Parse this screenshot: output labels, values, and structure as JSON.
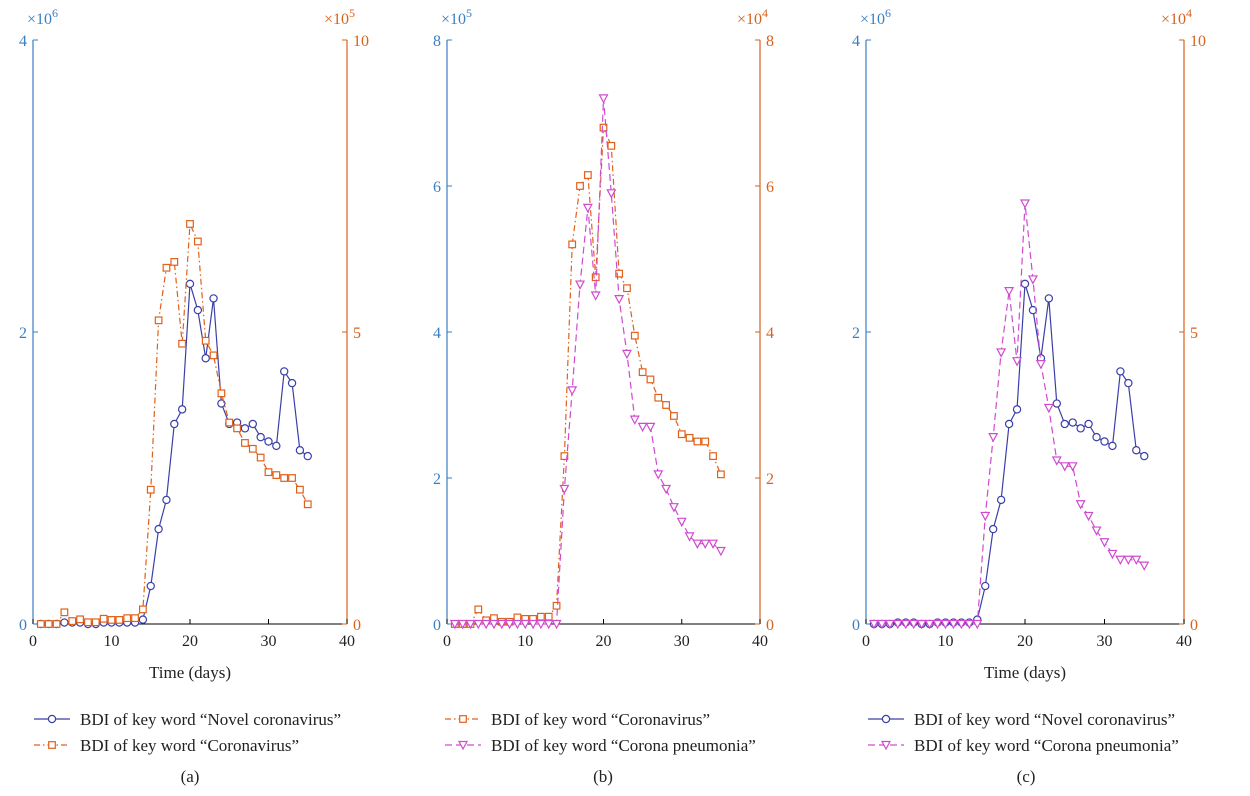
{
  "colors": {
    "left_axis": "#3a7fc1",
    "right_axis": "#d9611d",
    "novel": "#3a3fa8",
    "coronavirus": "#e0601a",
    "pneumonia": "#d04ad0"
  },
  "chart_data": [
    {
      "panel_label": "(a)",
      "type": "line",
      "xlabel": "Time (days)",
      "xlim": [
        0,
        40
      ],
      "xticks": [
        "0",
        "10",
        "20",
        "30",
        "40"
      ],
      "left_axis": {
        "multiplier": "×10",
        "exponent": "6",
        "ylim": [
          0,
          4
        ],
        "ticks": [
          "0",
          "2",
          "4"
        ]
      },
      "right_axis": {
        "multiplier": "×10",
        "exponent": "5",
        "ylim": [
          0,
          10
        ],
        "ticks": [
          "0",
          "5",
          "10"
        ]
      },
      "series": [
        {
          "name": "BDI of key word “Novel coronavirus”",
          "color_key": "novel",
          "axis": "left",
          "marker": "circle",
          "dash": "solid",
          "x": [
            1,
            2,
            3,
            4,
            5,
            6,
            7,
            8,
            9,
            10,
            11,
            12,
            13,
            14,
            15,
            16,
            17,
            18,
            19,
            20,
            21,
            22,
            23,
            24,
            25,
            26,
            27,
            28,
            29,
            30,
            31,
            32,
            33,
            34,
            35
          ],
          "y": [
            0.0,
            0.0,
            0.0,
            0.01,
            0.01,
            0.01,
            0.0,
            0.0,
            0.01,
            0.01,
            0.01,
            0.01,
            0.01,
            0.03,
            0.26,
            0.65,
            0.85,
            1.37,
            1.47,
            2.33,
            2.15,
            1.82,
            2.23,
            1.51,
            1.37,
            1.38,
            1.34,
            1.37,
            1.28,
            1.25,
            1.22,
            1.73,
            1.65,
            1.19,
            1.15
          ]
        },
        {
          "name": "BDI of key word “Coronavirus”",
          "color_key": "coronavirus",
          "axis": "right",
          "marker": "square",
          "dash": "dashdot",
          "x": [
            1,
            2,
            3,
            4,
            5,
            6,
            7,
            8,
            9,
            10,
            11,
            12,
            13,
            14,
            15,
            16,
            17,
            18,
            19,
            20,
            21,
            22,
            23,
            24,
            25,
            26,
            27,
            28,
            29,
            30,
            31,
            32,
            33,
            34,
            35
          ],
          "y": [
            0.0,
            0.0,
            0.0,
            0.2,
            0.05,
            0.08,
            0.03,
            0.03,
            0.09,
            0.07,
            0.07,
            0.1,
            0.1,
            0.25,
            2.3,
            5.2,
            6.1,
            6.2,
            4.8,
            6.85,
            6.55,
            4.85,
            4.6,
            3.95,
            3.45,
            3.35,
            3.1,
            3.0,
            2.85,
            2.6,
            2.55,
            2.5,
            2.5,
            2.3,
            2.05
          ]
        }
      ],
      "legend_order": [
        0,
        1
      ]
    },
    {
      "panel_label": "(b)",
      "type": "line",
      "xlabel": "",
      "xlim": [
        0,
        40
      ],
      "xticks": [
        "0",
        "10",
        "20",
        "30",
        "40"
      ],
      "left_axis": {
        "multiplier": "×10",
        "exponent": "5",
        "ylim": [
          0,
          8
        ],
        "ticks": [
          "0",
          "2",
          "4",
          "6",
          "8"
        ]
      },
      "right_axis": {
        "multiplier": "×10",
        "exponent": "4",
        "ylim": [
          0,
          8
        ],
        "ticks": [
          "0",
          "2",
          "4",
          "6",
          "8"
        ]
      },
      "series": [
        {
          "name": "BDI of key word “Coronavirus”",
          "color_key": "coronavirus",
          "axis": "left",
          "marker": "square",
          "dash": "dashdot",
          "x": [
            1,
            2,
            3,
            4,
            5,
            6,
            7,
            8,
            9,
            10,
            11,
            12,
            13,
            14,
            15,
            16,
            17,
            18,
            19,
            20,
            21,
            22,
            23,
            24,
            25,
            26,
            27,
            28,
            29,
            30,
            31,
            32,
            33,
            34,
            35
          ],
          "y": [
            0.0,
            0.0,
            0.0,
            0.2,
            0.05,
            0.08,
            0.03,
            0.03,
            0.09,
            0.07,
            0.07,
            0.1,
            0.1,
            0.25,
            2.3,
            5.2,
            6.0,
            6.15,
            4.75,
            6.8,
            6.55,
            4.8,
            4.6,
            3.95,
            3.45,
            3.35,
            3.1,
            3.0,
            2.85,
            2.6,
            2.55,
            2.5,
            2.5,
            2.3,
            2.05
          ]
        },
        {
          "name": "BDI of key word “Corona pneumonia”",
          "color_key": "pneumonia",
          "axis": "right",
          "marker": "triangle-down",
          "dash": "dashed",
          "x": [
            1,
            2,
            3,
            4,
            5,
            6,
            7,
            8,
            9,
            10,
            11,
            12,
            13,
            14,
            15,
            16,
            17,
            18,
            19,
            20,
            21,
            22,
            23,
            24,
            25,
            26,
            27,
            28,
            29,
            30,
            31,
            32,
            33,
            34,
            35
          ],
          "y": [
            0.0,
            0.0,
            0.0,
            0.0,
            0.0,
            0.0,
            0.0,
            0.0,
            0.0,
            0.0,
            0.0,
            0.0,
            0.0,
            0.0,
            1.85,
            3.2,
            4.65,
            5.7,
            4.5,
            7.2,
            5.9,
            4.45,
            3.7,
            2.8,
            2.7,
            2.7,
            2.05,
            1.85,
            1.6,
            1.4,
            1.2,
            1.1,
            1.1,
            1.1,
            1.0
          ]
        }
      ],
      "legend_order": [
        0,
        1
      ]
    },
    {
      "panel_label": "(c)",
      "type": "line",
      "xlabel": "Time (days)",
      "xlim": [
        0,
        40
      ],
      "xticks": [
        "0",
        "10",
        "20",
        "30",
        "40"
      ],
      "left_axis": {
        "multiplier": "×10",
        "exponent": "6",
        "ylim": [
          0,
          4
        ],
        "ticks": [
          "0",
          "2",
          "4"
        ]
      },
      "right_axis": {
        "multiplier": "×10",
        "exponent": "4",
        "ylim": [
          0,
          10
        ],
        "ticks": [
          "0",
          "5",
          "10"
        ]
      },
      "series": [
        {
          "name": "BDI of key word “Novel coronavirus”",
          "color_key": "novel",
          "axis": "left",
          "marker": "circle",
          "dash": "solid",
          "x": [
            1,
            2,
            3,
            4,
            5,
            6,
            7,
            8,
            9,
            10,
            11,
            12,
            13,
            14,
            15,
            16,
            17,
            18,
            19,
            20,
            21,
            22,
            23,
            24,
            25,
            26,
            27,
            28,
            29,
            30,
            31,
            32,
            33,
            34,
            35
          ],
          "y": [
            0.0,
            0.0,
            0.0,
            0.01,
            0.01,
            0.01,
            0.0,
            0.0,
            0.01,
            0.01,
            0.01,
            0.01,
            0.01,
            0.03,
            0.26,
            0.65,
            0.85,
            1.37,
            1.47,
            2.33,
            2.15,
            1.82,
            2.23,
            1.51,
            1.37,
            1.38,
            1.34,
            1.37,
            1.28,
            1.25,
            1.22,
            1.73,
            1.65,
            1.19,
            1.15
          ]
        },
        {
          "name": "BDI of key word “Corona pneumonia”",
          "color_key": "pneumonia",
          "axis": "right",
          "marker": "triangle-down",
          "dash": "dashed",
          "x": [
            1,
            2,
            3,
            4,
            5,
            6,
            7,
            8,
            9,
            10,
            11,
            12,
            13,
            14,
            15,
            16,
            17,
            18,
            19,
            20,
            21,
            22,
            23,
            24,
            25,
            26,
            27,
            28,
            29,
            30,
            31,
            32,
            33,
            34,
            35
          ],
          "y": [
            0.0,
            0.0,
            0.0,
            0.0,
            0.0,
            0.0,
            0.0,
            0.0,
            0.0,
            0.0,
            0.0,
            0.0,
            0.0,
            0.0,
            1.85,
            3.2,
            4.65,
            5.7,
            4.5,
            7.2,
            5.9,
            4.45,
            3.7,
            2.8,
            2.7,
            2.7,
            2.05,
            1.85,
            1.6,
            1.4,
            1.2,
            1.1,
            1.1,
            1.1,
            1.0
          ]
        }
      ],
      "legend_order": [
        0,
        1
      ]
    }
  ]
}
